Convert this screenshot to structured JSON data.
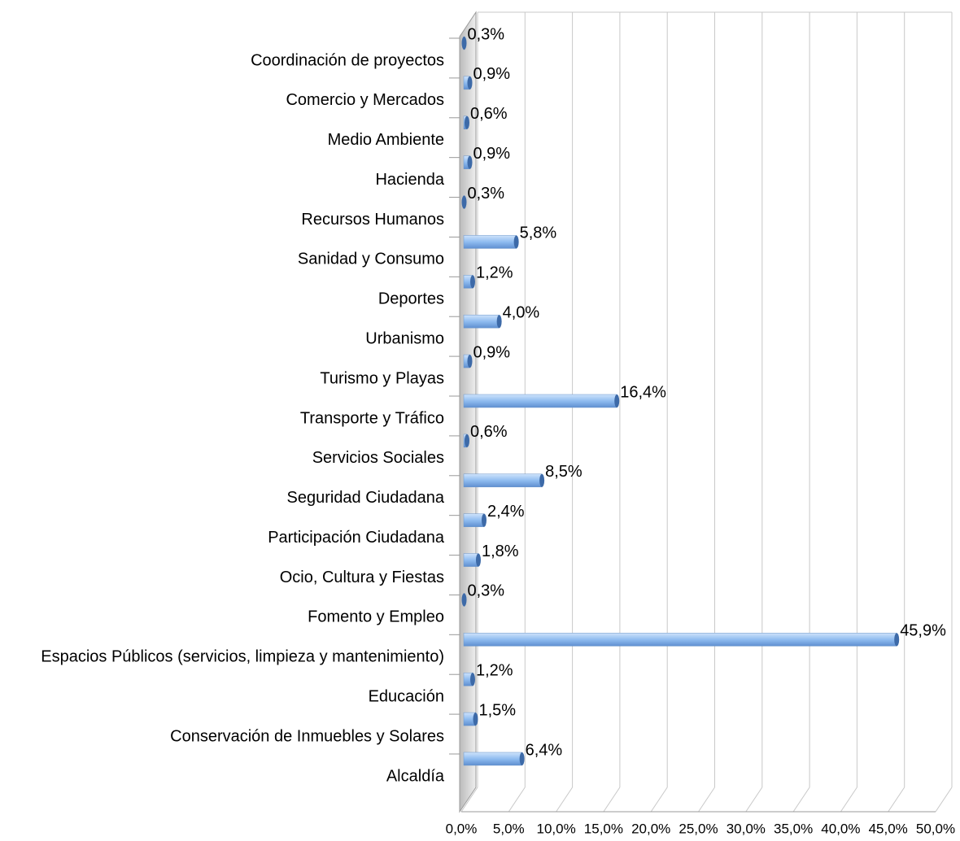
{
  "chart_data": {
    "type": "bar",
    "orientation": "horizontal",
    "categories": [
      "Coordinación de proyectos",
      "Comercio y Mercados",
      "Medio Ambiente",
      "Hacienda",
      "Recursos Humanos",
      "Sanidad y Consumo",
      "Deportes",
      "Urbanismo",
      "Turismo y Playas",
      "Transporte y Tráfico",
      "Servicios Sociales",
      "Seguridad Ciudadana",
      "Participación Ciudadana",
      "Ocio, Cultura y Fiestas",
      "Fomento y Empleo",
      "Espacios Públicos (servicios, limpieza y mantenimiento)",
      "Educación",
      "Conservación de Inmuebles y Solares",
      "Alcaldía"
    ],
    "values": [
      0.3,
      0.9,
      0.6,
      0.9,
      0.3,
      5.8,
      1.2,
      4.0,
      0.9,
      16.4,
      0.6,
      8.5,
      2.4,
      1.8,
      0.3,
      45.9,
      1.2,
      1.5,
      6.4
    ],
    "value_labels": [
      "0,3%",
      "0,9%",
      "0,6%",
      "0,9%",
      "0,3%",
      "5,8%",
      "1,2%",
      "4,0%",
      "0,9%",
      "16,4%",
      "0,6%",
      "8,5%",
      "2,4%",
      "1,8%",
      "0,3%",
      "45,9%",
      "1,2%",
      "1,5%",
      "6,4%"
    ],
    "color": "#8fbcf0",
    "xlim": [
      0,
      50
    ],
    "xticks": [
      {
        "value": 0,
        "label": "0,0%"
      },
      {
        "value": 5,
        "label": "5,0%"
      },
      {
        "value": 10,
        "label": "10,0%"
      },
      {
        "value": 15,
        "label": "15,0%"
      },
      {
        "value": 20,
        "label": "20,0%"
      },
      {
        "value": 25,
        "label": "25,0%"
      },
      {
        "value": 30,
        "label": "30,0%"
      },
      {
        "value": 35,
        "label": "35,0%"
      },
      {
        "value": 40,
        "label": "40,0%"
      },
      {
        "value": 45,
        "label": "45,0%"
      },
      {
        "value": 50,
        "label": "50,0%"
      }
    ],
    "grid": true
  }
}
